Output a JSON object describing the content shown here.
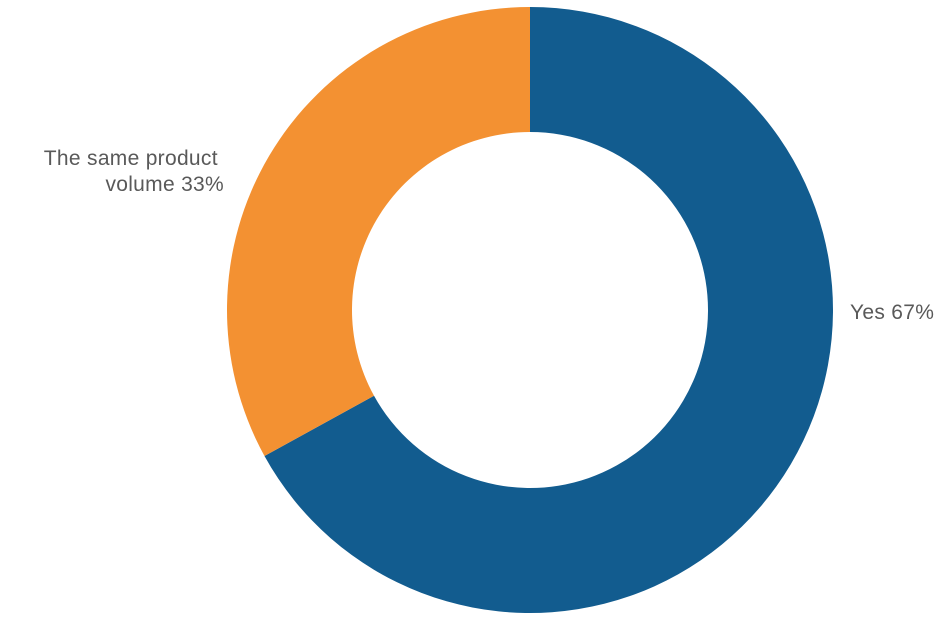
{
  "chart_data": {
    "type": "pie",
    "donut": true,
    "title": "",
    "slices": [
      {
        "label": "Yes",
        "value": 67,
        "display": "Yes 67%",
        "color": "#125C8F"
      },
      {
        "label": "The same product volume",
        "value": 33,
        "display_lines": [
          "The same product",
          "volume 33%"
        ],
        "color": "#F39132"
      }
    ],
    "units": "%",
    "start": "12 o'clock",
    "direction": "clockwise",
    "legend": "none",
    "labels": "outside"
  }
}
